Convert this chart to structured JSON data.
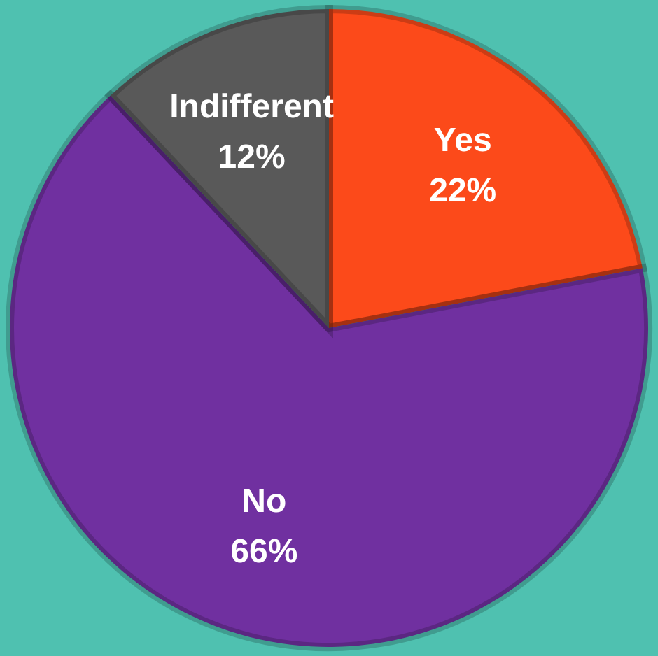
{
  "chart_data": {
    "type": "pie",
    "categories": [
      "Yes",
      "No",
      "Indifferent"
    ],
    "values": [
      22,
      66,
      12
    ],
    "colors": [
      "#fc4a1a",
      "#7030a0",
      "#595959"
    ],
    "value_labels": [
      "22%",
      "66%",
      "12%"
    ]
  }
}
